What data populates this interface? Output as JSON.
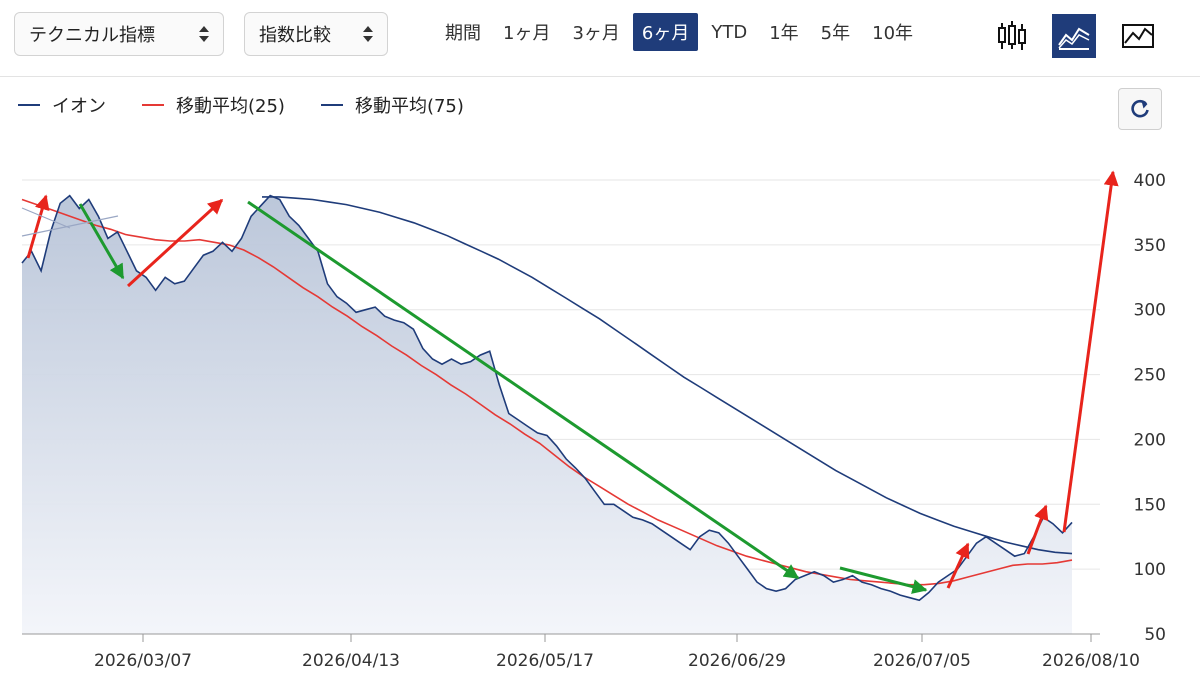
{
  "toolbar": {
    "technical_select": "テクニカル指標",
    "compare_select": "指数比較",
    "period_label": "期間",
    "periods": [
      "1ヶ月",
      "3ヶ月",
      "6ヶ月",
      "YTD",
      "1年",
      "5年",
      "10年"
    ],
    "active_period": "6ヶ月",
    "chart_types": [
      "candlestick-icon",
      "area-chart-icon",
      "line-chart-icon"
    ],
    "active_chart_type": "area-chart-icon"
  },
  "legend": [
    {
      "name": "イオン",
      "color": "#1f3c7a"
    },
    {
      "name": "移動平均(25)",
      "color": "#e53935"
    },
    {
      "name": "移動平均(75)",
      "color": "#1f3c7a"
    }
  ],
  "refresh_icon": "refresh-icon",
  "colors": {
    "accent": "#1f3c7a",
    "price": "#1f3c7a",
    "ma25": "#e53935",
    "ma75": "#1f3c7a",
    "annot_up": "#e8241c",
    "annot_down": "#1d9a2f",
    "area": "#c9d3e3"
  },
  "chart_data": {
    "type": "area",
    "x_ticks": [
      "2026/03/07",
      "2026/04/13",
      "2026/05/17",
      "2026/06/29",
      "2026/07/05",
      "2026/08/10"
    ],
    "y_ticks": [
      50,
      100,
      150,
      200,
      250,
      300,
      350,
      400
    ],
    "ylim": [
      50,
      400
    ],
    "grid": true,
    "legend_position": "top-left",
    "series": [
      {
        "name": "イオン",
        "values": [
          336,
          345,
          330,
          360,
          382,
          388,
          378,
          385,
          372,
          355,
          360,
          345,
          330,
          325,
          315,
          325,
          320,
          322,
          332,
          342,
          345,
          352,
          345,
          355,
          372,
          380,
          388,
          385,
          372,
          365,
          355,
          345,
          320,
          310,
          305,
          298,
          300,
          302,
          295,
          292,
          290,
          285,
          270,
          262,
          258,
          262,
          258,
          260,
          265,
          268,
          242,
          220,
          215,
          210,
          205,
          203,
          195,
          185,
          178,
          170,
          160,
          150,
          150,
          145,
          140,
          138,
          135,
          130,
          125,
          120,
          115,
          125,
          130,
          128,
          120,
          110,
          100,
          90,
          85,
          83,
          85,
          92,
          95,
          98,
          95,
          90,
          92,
          95,
          90,
          88,
          85,
          83,
          80,
          78,
          76,
          82,
          90,
          95,
          100,
          110,
          120,
          125,
          120,
          115,
          110,
          112,
          125,
          140,
          135,
          128,
          136
        ]
      },
      {
        "name": "移動平均(25)",
        "values": [
          385,
          381,
          377,
          373,
          369,
          365,
          362,
          358,
          356,
          354,
          353,
          353,
          354,
          352,
          350,
          346,
          340,
          333,
          325,
          317,
          310,
          302,
          295,
          287,
          280,
          272,
          265,
          257,
          250,
          242,
          235,
          227,
          219,
          212,
          204,
          197,
          188,
          179,
          171,
          164,
          157,
          150,
          144,
          138,
          133,
          128,
          123,
          118,
          114,
          110,
          107,
          104,
          101,
          98,
          96,
          94,
          92,
          91,
          90,
          89,
          88,
          88,
          89,
          91,
          94,
          97,
          100,
          103,
          104,
          104,
          105,
          107
        ]
      },
      {
        "name": "移動平均(75)",
        "values": [
          387,
          387,
          386,
          385,
          383,
          381,
          378,
          375,
          371,
          367,
          362,
          357,
          351,
          345,
          339,
          332,
          325,
          317,
          309,
          301,
          293,
          284,
          275,
          266,
          257,
          248,
          240,
          232,
          224,
          216,
          208,
          200,
          192,
          184,
          176,
          169,
          162,
          155,
          149,
          143,
          138,
          133,
          129,
          125,
          121,
          118,
          115,
          113,
          112
        ]
      }
    ]
  }
}
